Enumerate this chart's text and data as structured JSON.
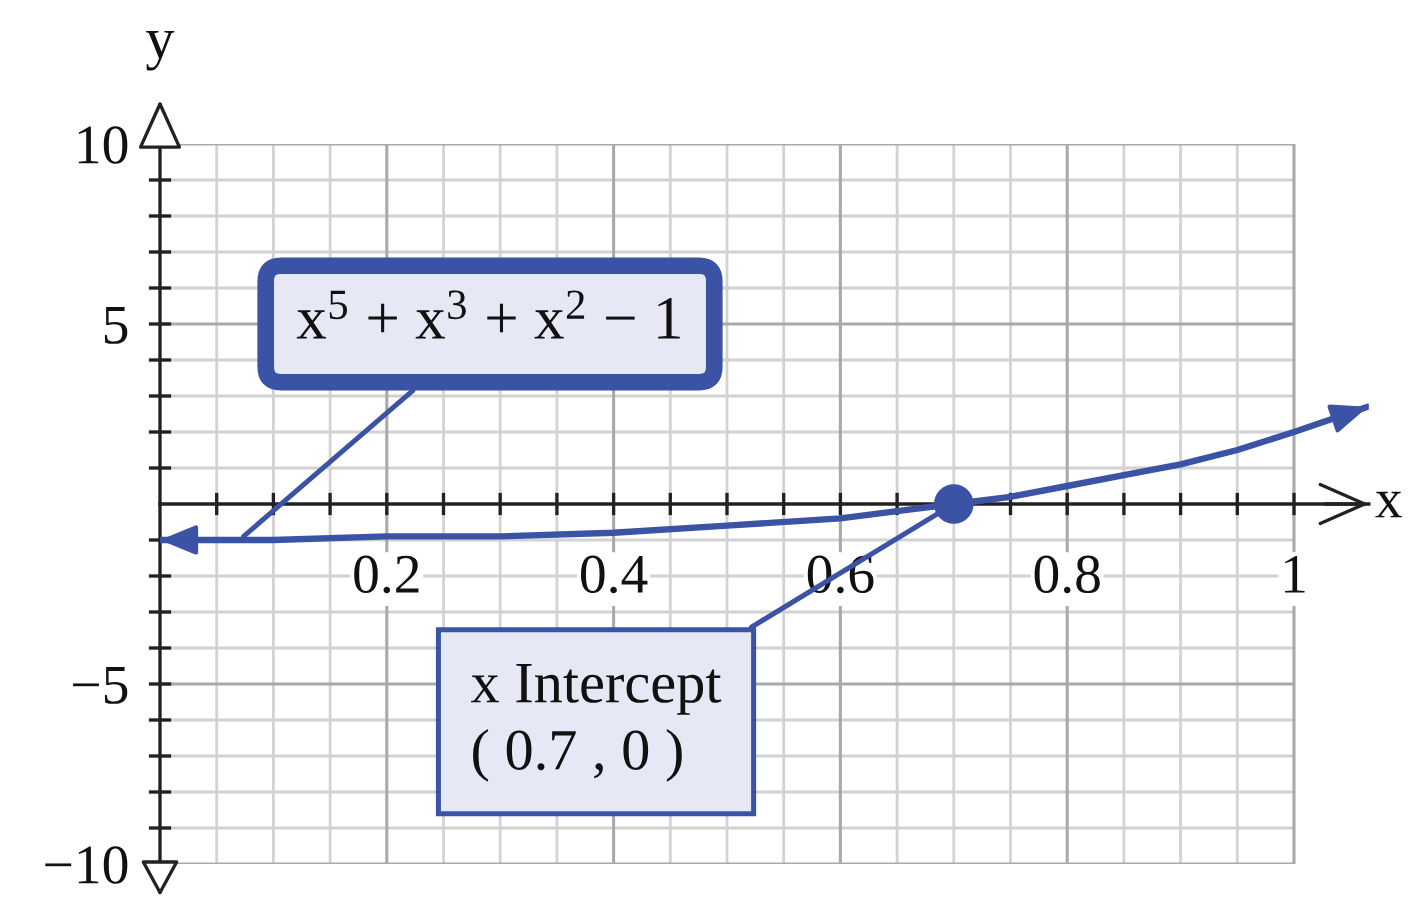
{
  "chart_data": {
    "type": "line",
    "xlabel": "x",
    "ylabel": "y",
    "xlim": [
      0,
      1.066
    ],
    "ylim": [
      -10,
      10
    ],
    "xticks": [
      {
        "value": 0.05,
        "label": null
      },
      {
        "value": 0.1,
        "label": null
      },
      {
        "value": 0.15,
        "label": null
      },
      0.2,
      {
        "value": 0.25,
        "label": null
      },
      {
        "value": 0.3,
        "label": null
      },
      {
        "value": 0.35,
        "label": null
      },
      0.4,
      {
        "value": 0.45,
        "label": null
      },
      {
        "value": 0.5,
        "label": null
      },
      {
        "value": 0.55,
        "label": null
      },
      0.6,
      {
        "value": 0.65,
        "label": null
      },
      {
        "value": 0.7,
        "label": null
      },
      {
        "value": 0.75,
        "label": null
      },
      0.8,
      {
        "value": 0.85,
        "label": null
      },
      {
        "value": 0.9,
        "label": null
      },
      {
        "value": 0.95,
        "label": null
      },
      1
    ],
    "yticks": [
      {
        "value": -10,
        "label": "−10"
      },
      {
        "value": -9,
        "label": null
      },
      {
        "value": -8,
        "label": null
      },
      {
        "value": -7,
        "label": null
      },
      {
        "value": -6,
        "label": null
      },
      {
        "value": -5,
        "label": "−5"
      },
      {
        "value": -4,
        "label": null
      },
      {
        "value": -3,
        "label": null
      },
      {
        "value": -2,
        "label": null
      },
      {
        "value": -1,
        "label": null
      },
      {
        "value": 1,
        "label": null
      },
      {
        "value": 2,
        "label": null
      },
      {
        "value": 3,
        "label": null
      },
      {
        "value": 4,
        "label": null
      },
      5,
      {
        "value": 6,
        "label": null
      },
      {
        "value": 7,
        "label": null
      },
      {
        "value": 8,
        "label": null
      },
      {
        "value": 9,
        "label": null
      },
      10
    ],
    "grid": true,
    "series": [
      {
        "color": "#3a53a4",
        "x": [
          0,
          0.1,
          0.2,
          0.3,
          0.4,
          0.5,
          0.6,
          0.65,
          0.7,
          0.75,
          0.8,
          0.85,
          0.9,
          0.95,
          1,
          1.065
        ],
        "values": [
          -1,
          -1,
          -0.9,
          -0.9,
          -0.8,
          -0.6,
          -0.4,
          -0.2,
          0,
          0.2,
          0.5,
          0.8,
          1.1,
          1.5,
          2,
          2.7
        ]
      },
      {
        "type": "scatter",
        "color": "#3a53a4",
        "marker": "circle",
        "x": [
          0.7
        ],
        "values": [
          0
        ]
      }
    ],
    "annotations": [
      {
        "text": "x$^{5}$ + x$^{3}$ + x$^{2}$ − 1",
        "x": 0.07,
        "y": -1
      },
      {
        "text": "x Intercept\n( 0.7 , 0 )",
        "x": 0.7,
        "y": 0
      }
    ]
  }
}
